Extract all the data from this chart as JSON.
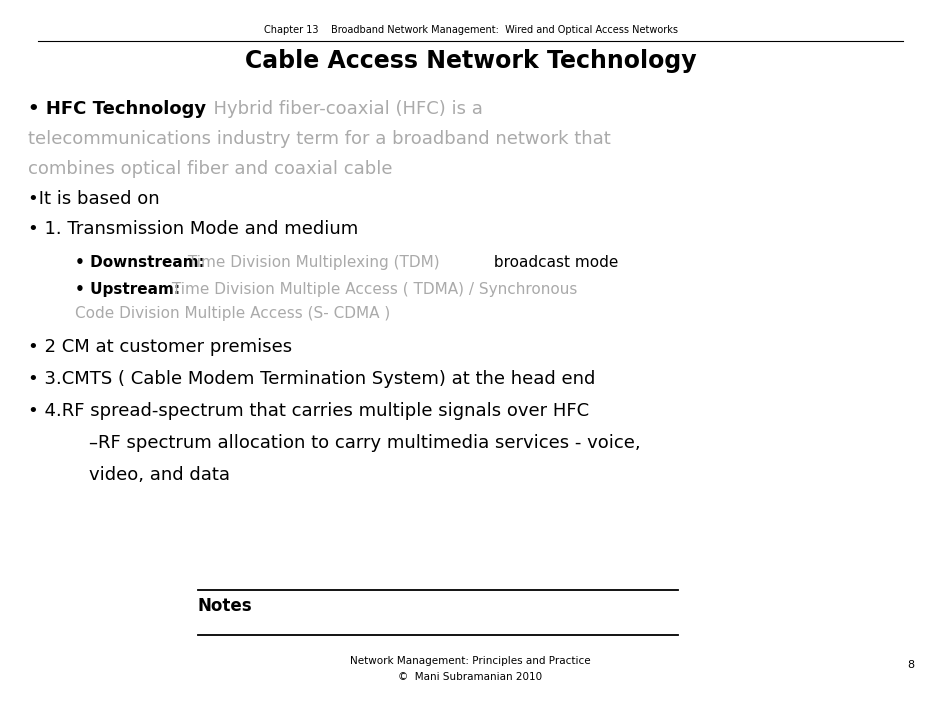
{
  "header_chapter": "Chapter 13",
  "header_title": "Broadband Network Management:  Wired and Optical Access Networks",
  "slide_title": "Cable Access Network Technology",
  "background_color": "#ffffff",
  "header_line_color": "#000000",
  "title_color": "#000000",
  "black": "#000000",
  "gray": "#aaaaaa",
  "notes_label": "Notes",
  "footer_line1": "Network Management: Principles and Practice",
  "footer_line2": "©  Mani Subramanian 2010",
  "page_number": "8",
  "header_fs": 7,
  "title_fs": 17,
  "body_fs": 13,
  "sub_fs": 11,
  "notes_fs": 12,
  "footer_fs": 7.5
}
